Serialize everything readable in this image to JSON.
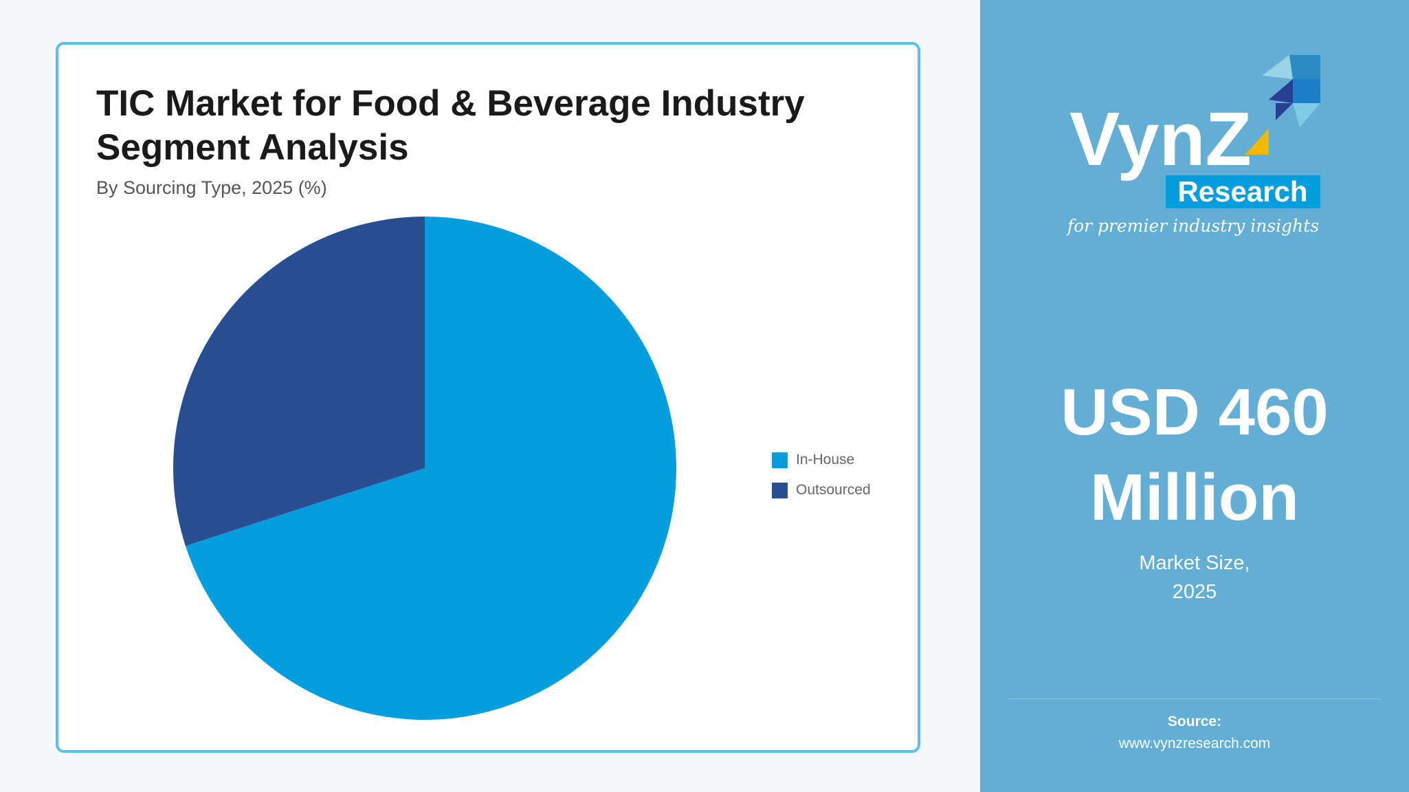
{
  "card": {
    "title_line1": "TIC Market for Food & Beverage Industry",
    "title_line2": "Segment Analysis",
    "subtitle": "By Sourcing Type, 2025 (%)"
  },
  "chart_data": {
    "type": "pie",
    "title": "TIC Market for Food & Beverage Industry Segment Analysis",
    "subtitle": "By Sourcing Type, 2025 (%)",
    "categories": [
      "In-House",
      "Outsourced"
    ],
    "values": [
      70,
      30
    ],
    "colors": [
      "#049ddd",
      "#284f91"
    ],
    "start_angle": "12 o'clock, clockwise",
    "legend_position": "right"
  },
  "panel": {
    "logo_text": "VynZ",
    "logo_sub": "Research",
    "tagline": "for premier industry insights",
    "value_line1": "USD 460",
    "value_line2": "Million",
    "label_line1": "Market Size,",
    "label_line2": "2025",
    "source_label": "Source:",
    "source_url": "www.vynzresearch.com",
    "background": "#62aed4"
  }
}
